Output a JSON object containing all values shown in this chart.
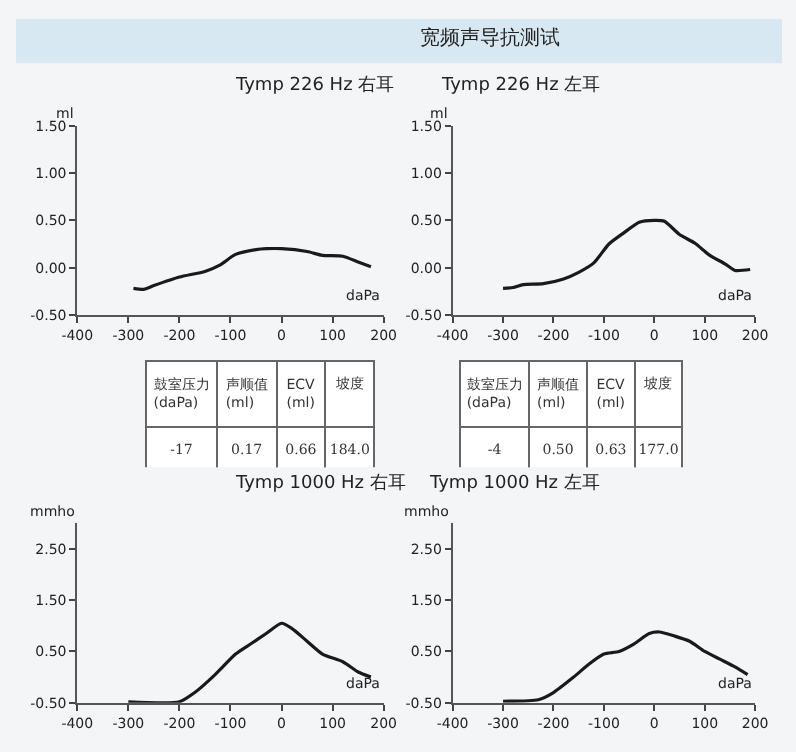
{
  "chart_data": [
    {
      "type": "other",
      "title": "宽频声导抗测试"
    },
    {
      "type": "line",
      "title": "Tymp 226 Hz 右耳",
      "xlabel": "daPa",
      "ylabel": "ml",
      "grid": false,
      "marker": "none",
      "line_style": "solid",
      "xlim": [
        -400,
        200
      ],
      "xticks": [
        -400,
        -300,
        -200,
        -100,
        0,
        100,
        200
      ],
      "ylim": [
        -0.5,
        1.5
      ],
      "yticks": [
        {
          "value": -0.5,
          "label": "-0.50"
        },
        {
          "value": 0,
          "label": "0.00"
        },
        {
          "value": 0.5,
          "label": "0.50"
        },
        {
          "value": 1,
          "label": "1.00"
        },
        {
          "value": 1.5,
          "label": "1.50"
        }
      ],
      "x": [
        -290,
        -270,
        -250,
        -200,
        -150,
        -120,
        -90,
        -50,
        -30,
        0,
        50,
        80,
        120,
        150,
        175
      ],
      "series": [
        {
          "color": "#1a1a1a",
          "values": [
            -0.22,
            -0.23,
            -0.19,
            -0.1,
            -0.04,
            0.03,
            0.14,
            0.19,
            0.2,
            0.2,
            0.17,
            0.13,
            0.12,
            0.06,
            0.01
          ]
        }
      ]
    },
    {
      "type": "line",
      "title": "Tymp 226 Hz 左耳",
      "xlabel": "daPa",
      "ylabel": "ml",
      "grid": false,
      "marker": "none",
      "line_style": "solid",
      "xlim": [
        -400,
        200
      ],
      "xticks": [
        -400,
        -300,
        -200,
        -100,
        0,
        100,
        200
      ],
      "ylim": [
        -0.5,
        1.5
      ],
      "yticks": [
        {
          "value": -0.5,
          "label": "-0.50"
        },
        {
          "value": 0,
          "label": "0.00"
        },
        {
          "value": 0.5,
          "label": "0.50"
        },
        {
          "value": 1,
          "label": "1.00"
        },
        {
          "value": 1.5,
          "label": "1.50"
        }
      ],
      "x": [
        -300,
        -280,
        -260,
        -220,
        -180,
        -150,
        -120,
        -90,
        -60,
        -30,
        0,
        20,
        50,
        80,
        110,
        140,
        160,
        190
      ],
      "series": [
        {
          "color": "#1a1a1a",
          "values": [
            -0.22,
            -0.21,
            -0.18,
            -0.17,
            -0.12,
            -0.05,
            0.05,
            0.25,
            0.37,
            0.48,
            0.5,
            0.49,
            0.35,
            0.26,
            0.13,
            0.04,
            -0.03,
            -0.02
          ]
        }
      ]
    },
    {
      "type": "other",
      "categories": [
        "鼓室压力 (daPa)",
        "声顺值 (ml)",
        "ECV (ml)",
        "坡度"
      ],
      "annotations": [
        "-17",
        "0.17",
        "0.66",
        "184.0"
      ]
    },
    {
      "type": "other",
      "categories": [
        "鼓室压力 (daPa)",
        "声顺值 (ml)",
        "ECV (ml)",
        "坡度"
      ],
      "annotations": [
        "-4",
        "0.50",
        "0.63",
        "177.0"
      ]
    },
    {
      "type": "line",
      "title": "Tymp 1000 Hz 右耳",
      "xlabel": "daPa",
      "ylabel": "mmho",
      "grid": false,
      "marker": "none",
      "line_style": "solid",
      "xlim": [
        -400,
        200
      ],
      "xticks": [
        -400,
        -300,
        -200,
        -100,
        0,
        100,
        200
      ],
      "ylim": [
        -0.5,
        3.0
      ],
      "yticks": [
        {
          "value": -0.5,
          "label": "-0.50"
        },
        {
          "value": 0.5,
          "label": "0.50"
        },
        {
          "value": 1.5,
          "label": "1.50"
        },
        {
          "value": 2.5,
          "label": "2.50"
        }
      ],
      "x": [
        -300,
        -200,
        -170,
        -130,
        -90,
        -60,
        -30,
        0,
        20,
        50,
        80,
        120,
        150,
        175
      ],
      "series": [
        {
          "color": "#1a1a1a",
          "values": [
            -0.48,
            -0.48,
            -0.3,
            0.05,
            0.45,
            0.65,
            0.85,
            1.05,
            0.95,
            0.7,
            0.45,
            0.3,
            0.1,
            0.0
          ]
        }
      ]
    },
    {
      "type": "line",
      "title": "Tymp 1000 Hz 左耳",
      "xlabel": "daPa",
      "ylabel": "mmho",
      "grid": false,
      "marker": "none",
      "line_style": "solid",
      "xlim": [
        -400,
        200
      ],
      "xticks": [
        -400,
        -300,
        -200,
        -100,
        0,
        100,
        200
      ],
      "ylim": [
        -0.5,
        3.0
      ],
      "yticks": [
        {
          "value": -0.5,
          "label": "-0.50"
        },
        {
          "value": 0.5,
          "label": "0.50"
        },
        {
          "value": 1.5,
          "label": "1.50"
        },
        {
          "value": 2.5,
          "label": "2.50"
        }
      ],
      "x": [
        -300,
        -230,
        -200,
        -160,
        -130,
        -100,
        -70,
        -40,
        -10,
        10,
        40,
        70,
        100,
        130,
        160,
        185
      ],
      "series": [
        {
          "color": "#1a1a1a",
          "values": [
            -0.47,
            -0.44,
            -0.3,
            0.0,
            0.25,
            0.45,
            0.5,
            0.65,
            0.85,
            0.88,
            0.8,
            0.7,
            0.5,
            0.35,
            0.2,
            0.05
          ]
        }
      ]
    }
  ]
}
